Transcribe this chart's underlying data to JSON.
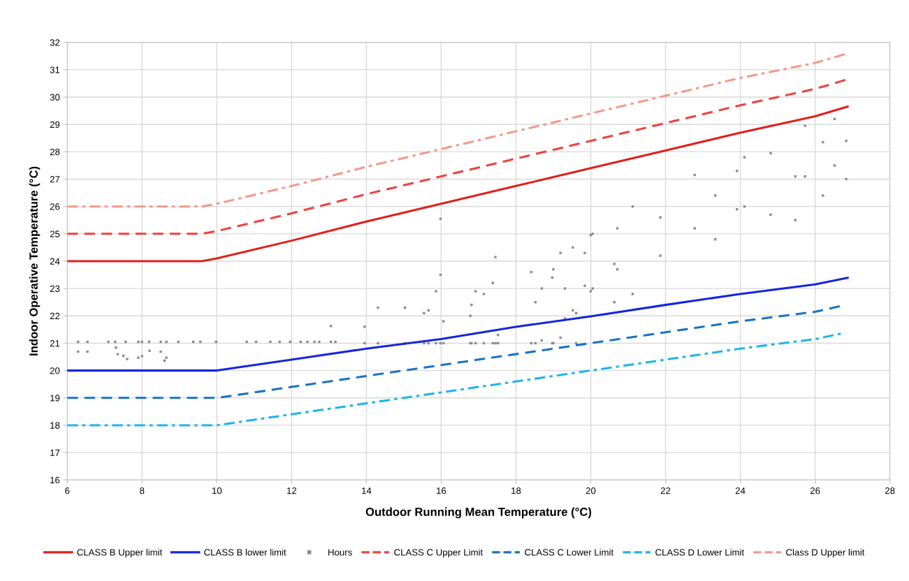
{
  "chart_data": {
    "type": "line",
    "xlabel": "Outdoor Running Mean Temperature (°C)",
    "ylabel": "Indoor Operative Temperature (°C)",
    "xlim": [
      6,
      28
    ],
    "xticks": [
      6,
      8,
      10,
      12,
      14,
      16,
      18,
      20,
      22,
      24,
      26,
      28
    ],
    "ylim": [
      16,
      32
    ],
    "yticks": [
      16,
      17,
      18,
      19,
      20,
      21,
      22,
      23,
      24,
      25,
      26,
      27,
      28,
      29,
      30,
      31,
      32
    ],
    "grid": true,
    "legend": "bottom",
    "marker": "none",
    "series": [
      {
        "name": "CLASS B Upper limit",
        "color": "#e0201b",
        "line_style": "solid",
        "x": [
          6,
          9.6,
          10,
          12,
          14,
          16,
          18,
          20,
          22,
          24,
          26,
          26.87
        ],
        "values": [
          24,
          24,
          24.1,
          24.75,
          25.45,
          26.1,
          26.75,
          27.4,
          28.05,
          28.7,
          29.3,
          29.65
        ]
      },
      {
        "name": "CLASS B lower limit",
        "color": "#1426e0",
        "line_style": "solid",
        "x": [
          6,
          10,
          12,
          14,
          16,
          18,
          20,
          22,
          24,
          26,
          26.87
        ],
        "values": [
          20,
          20,
          20.4,
          20.8,
          21.15,
          21.6,
          21.98,
          22.4,
          22.8,
          23.15,
          23.39
        ]
      },
      {
        "name": "Hours",
        "type": "scatter",
        "marker": "square",
        "color": "#8c8c8c",
        "x": [
          6.29,
          6.29,
          6.54,
          6.54,
          7.1,
          7.28,
          7.3,
          7.35,
          7.5,
          7.56,
          7.6,
          7.9,
          7.9,
          8.0,
          8.0,
          8.19,
          8.2,
          8.5,
          8.5,
          8.6,
          8.65,
          8.65,
          8.97,
          9.37,
          9.56,
          9.98,
          10.8,
          11.05,
          11.43,
          11.68,
          11.96,
          12.24,
          12.42,
          12.61,
          12.74,
          13.05,
          13.05,
          13.17,
          13.95,
          13.95,
          14.31,
          14.31,
          15.03,
          15.03,
          15.54,
          15.54,
          15.66,
          15.66,
          15.86,
          15.86,
          15.98,
          15.98,
          15.98,
          16.06,
          16.06,
          16.78,
          16.78,
          16.81,
          16.81,
          16.92,
          16.92,
          17.14,
          17.14,
          17.38,
          17.38,
          17.45,
          17.45,
          17.52,
          17.52,
          18.41,
          18.41,
          18.52,
          18.52,
          18.69,
          18.69,
          18.97,
          18.97,
          19.0,
          19.0,
          19.19,
          19.19,
          19.31,
          19.31,
          19.52,
          19.52,
          19.61,
          19.61,
          19.84,
          19.84,
          20.05,
          20.05,
          20.0,
          20.0,
          20.63,
          20.63,
          20.71,
          20.71,
          21.12,
          21.12,
          21.86,
          21.86,
          22.78,
          22.78,
          23.33,
          23.33,
          23.91,
          23.91,
          24.11,
          24.11,
          24.81,
          24.81,
          25.47,
          25.47,
          25.73,
          25.73,
          26.21,
          26.21,
          26.52,
          26.52,
          26.83,
          26.83
        ],
        "values": [
          21.05,
          20.69,
          21.05,
          20.69,
          21.05,
          21.05,
          20.84,
          20.6,
          20.54,
          21.05,
          20.42,
          21.05,
          20.47,
          21.05,
          20.53,
          21.05,
          20.72,
          21.05,
          20.69,
          20.36,
          21.05,
          20.47,
          21.05,
          21.05,
          21.05,
          21.05,
          21.05,
          21.05,
          21.05,
          21.05,
          21.05,
          21.05,
          21.05,
          21.05,
          21.05,
          21.05,
          21.63,
          21.05,
          21.0,
          21.6,
          21.0,
          22.3,
          21.0,
          22.3,
          21.0,
          22.1,
          21.0,
          22.2,
          21.0,
          22.9,
          21.0,
          23.5,
          25.55,
          21.0,
          21.8,
          21.0,
          22.0,
          21.0,
          22.4,
          21.0,
          22.9,
          21.0,
          22.8,
          21.0,
          23.2,
          21.0,
          24.15,
          21.0,
          21.3,
          21.0,
          23.6,
          21.0,
          22.5,
          21.1,
          23.0,
          21.0,
          23.4,
          21.0,
          23.7,
          21.2,
          24.3,
          21.9,
          23.0,
          22.2,
          24.5,
          21.0,
          22.1,
          23.1,
          24.3,
          23.0,
          25.0,
          22.9,
          24.95,
          22.5,
          23.9,
          23.7,
          25.2,
          22.8,
          26.0,
          24.2,
          25.6,
          25.2,
          27.15,
          24.8,
          26.4,
          25.9,
          27.3,
          26.0,
          27.8,
          25.7,
          27.95,
          25.5,
          27.1,
          27.1,
          28.95,
          26.4,
          28.35,
          27.5,
          29.2,
          27.0,
          28.4
        ]
      },
      {
        "name": "CLASS C Upper Limit",
        "color": "#f0413c",
        "line_style": "dashed",
        "x": [
          6,
          9.6,
          10,
          12,
          14,
          16,
          18,
          20,
          22,
          24,
          26,
          26.87
        ],
        "values": [
          25,
          25,
          25.1,
          25.75,
          26.45,
          27.1,
          27.75,
          28.4,
          29.05,
          29.7,
          30.3,
          30.65
        ]
      },
      {
        "name": "CLASS C Lower Limit",
        "color": "#1a72c4",
        "line_style": "dashed",
        "x": [
          6,
          10,
          12,
          14,
          16,
          18,
          20,
          22,
          24,
          26,
          26.72
        ],
        "values": [
          19,
          19,
          19.4,
          19.8,
          20.2,
          20.6,
          21.0,
          21.4,
          21.8,
          22.15,
          22.37
        ]
      },
      {
        "name": "CLASS D Lower Limit",
        "color": "#1db4ec",
        "line_style": "dashdot",
        "x": [
          6,
          10,
          12,
          14,
          16,
          18,
          20,
          22,
          24,
          26,
          26.78
        ],
        "values": [
          18,
          18,
          18.4,
          18.8,
          19.2,
          19.6,
          20.0,
          20.4,
          20.8,
          21.15,
          21.38
        ]
      },
      {
        "name": "Class D Upper limit",
        "color": "#f4998a",
        "line_style": "dashdot",
        "x": [
          6,
          9.6,
          10,
          12,
          14,
          16,
          18,
          20,
          22,
          24,
          26,
          26.87
        ],
        "values": [
          26,
          26,
          26.1,
          26.75,
          27.45,
          28.1,
          28.75,
          29.4,
          30.05,
          30.7,
          31.25,
          31.6
        ]
      }
    ]
  }
}
